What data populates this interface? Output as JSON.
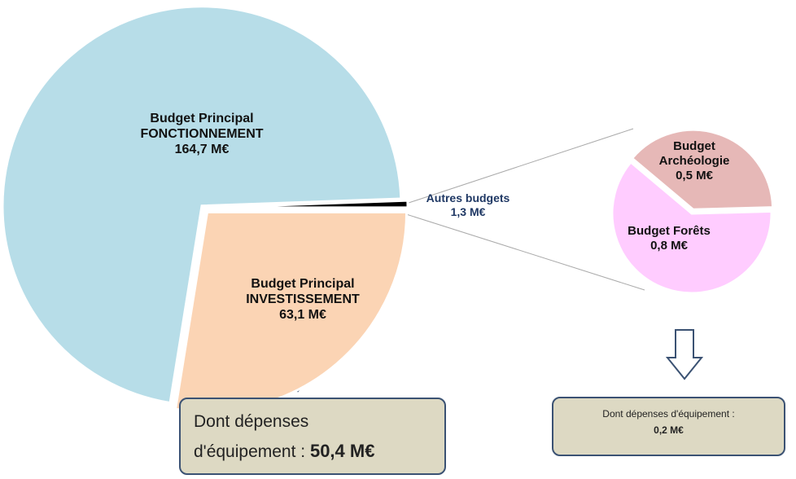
{
  "chart_data": [
    {
      "type": "pie",
      "categories": [
        "Budget Principal\nFONCTIONNEMENT",
        "Budget Principal\nINVESTISSEMENT",
        "Autres budgets"
      ],
      "values": [
        164.7,
        63.1,
        1.3
      ],
      "value_labels": [
        "164,7 M€",
        "63,1 M€",
        "1,3 M€"
      ],
      "colors": [
        "#b7dde8",
        "#fbd4b4",
        "#000000"
      ],
      "annotation": [
        "Dont dépenses\nd'équipement : ",
        "50,4 M€"
      ]
    },
    {
      "type": "pie",
      "categories": [
        "Budget\nArchéologie",
        "Budget Forêts"
      ],
      "values": [
        0.5,
        0.8
      ],
      "value_labels": [
        "0,5 M€",
        "0,8 M€"
      ],
      "colors": [
        "#e6b8b7",
        "#ffccff"
      ],
      "annotation": [
        "Dont dépenses d'équipement :",
        "0,2 M€"
      ]
    }
  ]
}
